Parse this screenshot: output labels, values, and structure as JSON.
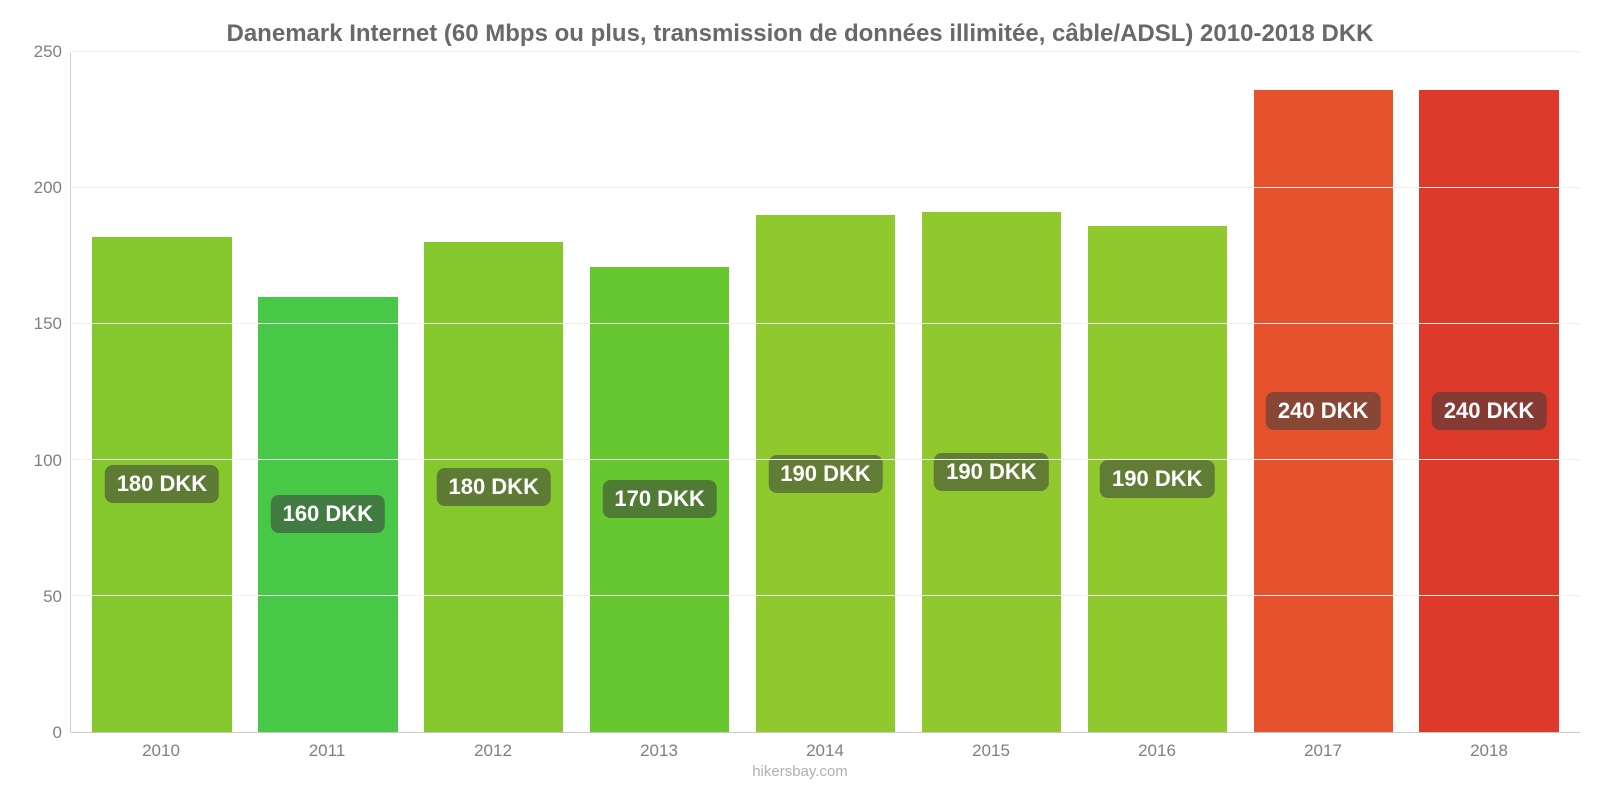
{
  "chart": {
    "type": "bar",
    "title": "Danemark Internet (60 Mbps ou plus, transmission de données illimitée, câble/ADSL) 2010-2018 DKK",
    "title_color": "#696969",
    "title_fontsize": 24,
    "source": "hikersbay.com",
    "source_color": "#b0b0b0",
    "background_color": "#ffffff",
    "grid_color": "#f0f0f0",
    "axis_color": "#cacaca",
    "tick_label_color": "#808080",
    "tick_label_fontsize": 17,
    "bar_label_fontsize": 22,
    "bar_label_bg": "rgba(60,60,60,0.55)",
    "bar_label_color": "#ffffff",
    "bar_width": 0.84,
    "ylim": [
      0,
      250
    ],
    "ytick_step": 50,
    "yticks": [
      0,
      50,
      100,
      150,
      200,
      250
    ],
    "categories": [
      "2010",
      "2011",
      "2012",
      "2013",
      "2014",
      "2015",
      "2016",
      "2017",
      "2018"
    ],
    "values": [
      182,
      160,
      180,
      171,
      190,
      191,
      186,
      236,
      236
    ],
    "bar_labels": [
      "180 DKK",
      "160 DKK",
      "180 DKK",
      "170 DKK",
      "190 DKK",
      "190 DKK",
      "190 DKK",
      "240 DKK",
      "240 DKK"
    ],
    "bar_colors": [
      "#85c82e",
      "#47c847",
      "#85c82e",
      "#66c82e",
      "#8fc92d",
      "#8fc92d",
      "#8fc92d",
      "#e5522d",
      "#de3a2c"
    ]
  }
}
